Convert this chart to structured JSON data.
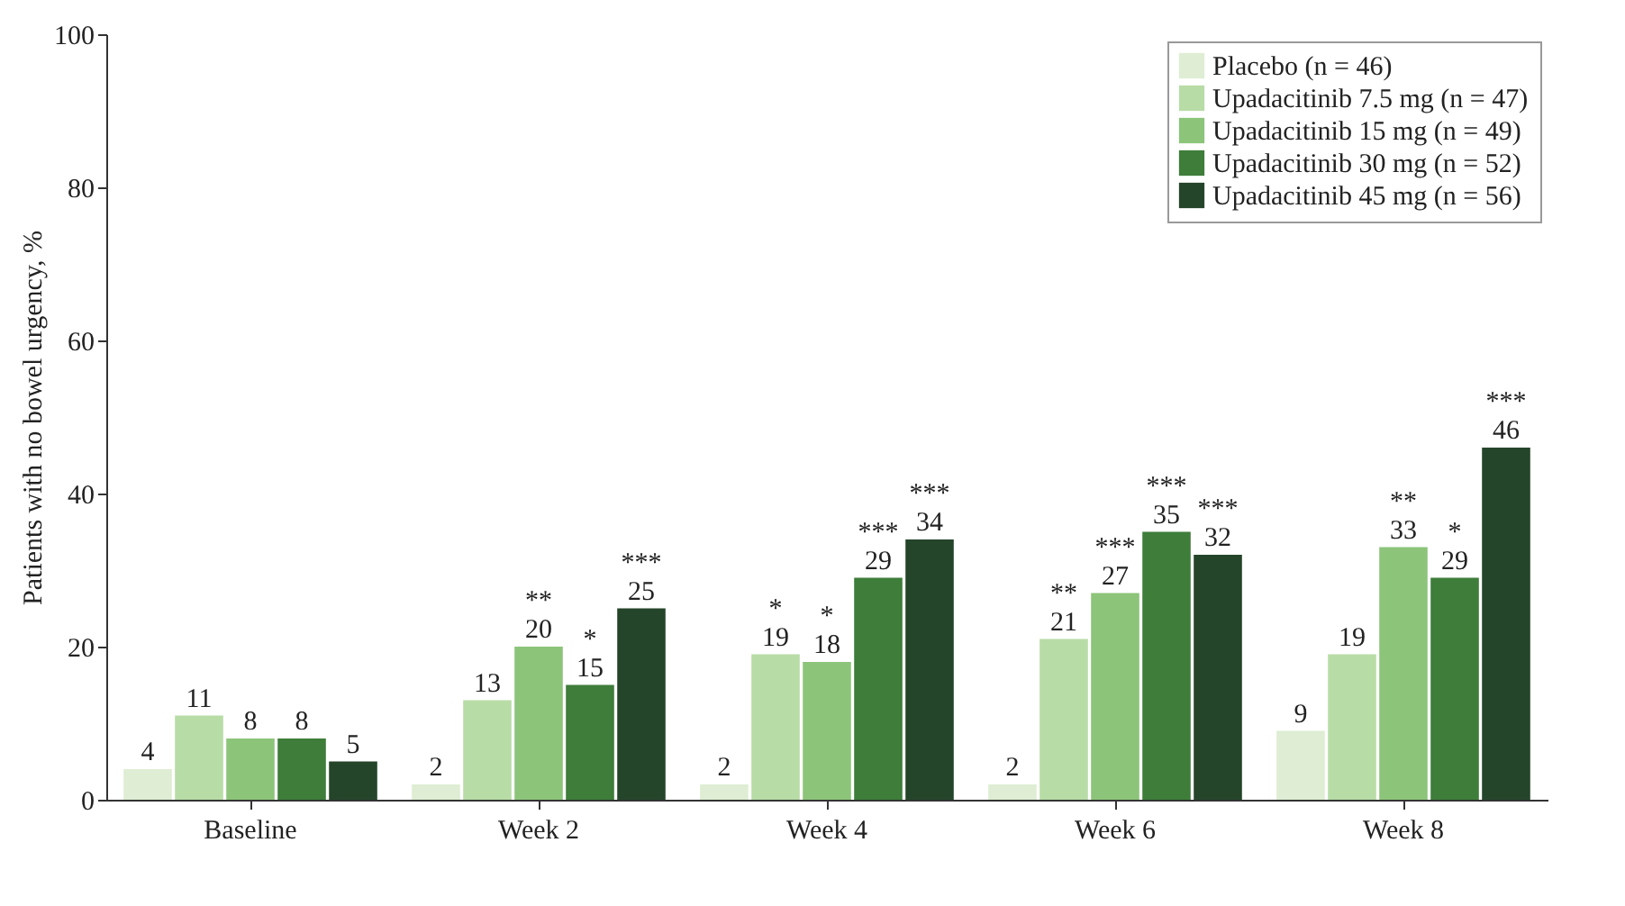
{
  "chart_data": {
    "type": "bar",
    "ylabel": "Patients with no bowel urgency, %",
    "categories": [
      "Baseline",
      "Week 2",
      "Week 4",
      "Week 6",
      "Week 8"
    ],
    "series": [
      {
        "name": "Placebo (n = 46)",
        "color": "#deedd3",
        "values": [
          4,
          2,
          2,
          2,
          9
        ],
        "value_labels": [
          "4",
          "2",
          "2",
          "2",
          "9"
        ]
      },
      {
        "name": "Upadacitinib 7.5 mg (n = 47)",
        "color": "#b8dca6",
        "values": [
          11,
          13,
          19,
          21,
          19
        ],
        "value_labels": [
          "11",
          "13",
          "*\n19",
          "**\n21",
          "19"
        ]
      },
      {
        "name": "Upadacitinib 15 mg (n = 49)",
        "color": "#8cc47a",
        "values": [
          8,
          20,
          18,
          27,
          33
        ],
        "value_labels": [
          "8",
          "**\n20",
          "*\n18",
          "***\n27",
          "**\n33"
        ]
      },
      {
        "name": "Upadacitinib 30 mg (n = 52)",
        "color": "#3e7d3a",
        "values": [
          8,
          15,
          29,
          35,
          29
        ],
        "value_labels": [
          "8",
          "*\n15",
          "***\n29",
          "***\n35",
          "*\n29"
        ]
      },
      {
        "name": "Upadacitinib 45 mg (n = 56)",
        "color": "#25452a",
        "values": [
          5,
          25,
          34,
          32,
          46
        ],
        "value_labels": [
          "5",
          "***\n25",
          "***\n34",
          "***\n32",
          "***\n46"
        ]
      }
    ],
    "ylim": [
      0,
      100
    ],
    "yticks": [
      0,
      20,
      40,
      60,
      80,
      100
    ],
    "grid": false,
    "legend": "top right"
  }
}
